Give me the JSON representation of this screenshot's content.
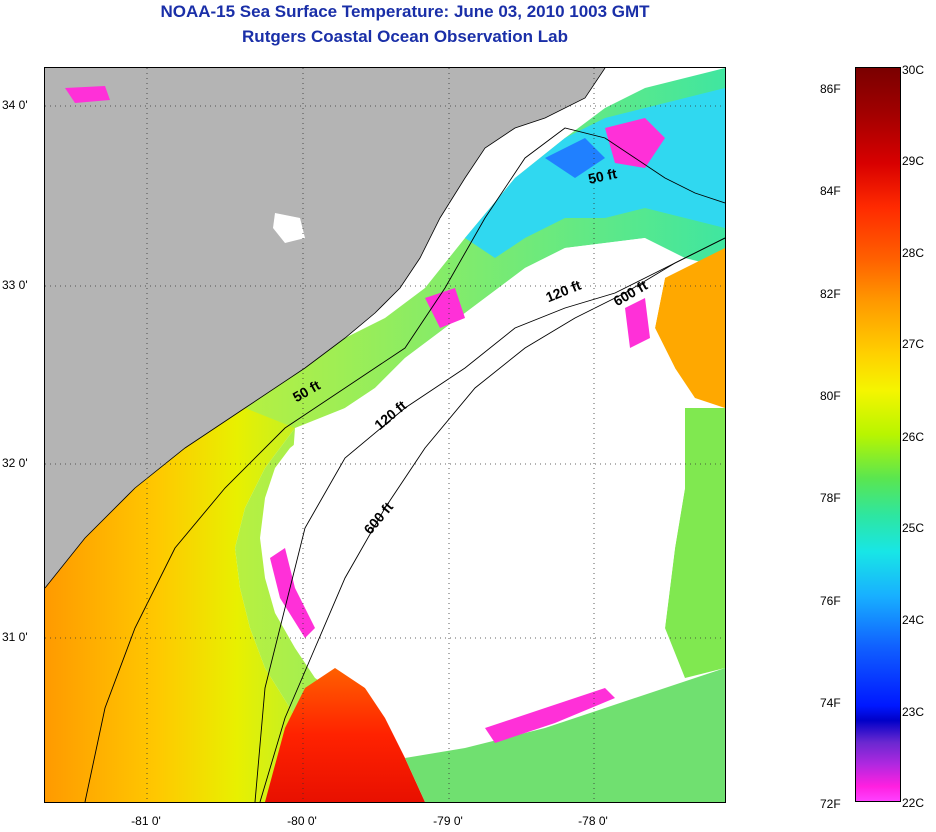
{
  "header": {
    "title": "NOAA-15 Sea Surface Temperature:  June 03, 2010 1003 GMT",
    "subtitle": "Rutgers Coastal Ocean Observation Lab"
  },
  "map": {
    "lat_labels": [
      "34 0'",
      "33 0'",
      "32 0'",
      "31 0'"
    ],
    "lon_labels": [
      "-81 0'",
      "-80 0'",
      "-79 0'",
      "-78 0'"
    ],
    "contour_labels": [
      "50 ft",
      "120 ft",
      "600 ft",
      "50 ft",
      "120 ft",
      "600 ft"
    ],
    "colors": {
      "land": "#b4b4b4",
      "cloud": "#ffffff"
    }
  },
  "colorbar": {
    "fahrenheit": [
      "86F",
      "84F",
      "82F",
      "80F",
      "78F",
      "76F",
      "74F",
      "72F"
    ],
    "celsius": [
      "30C",
      "29C",
      "28C",
      "27C",
      "26C",
      "25C",
      "24C",
      "23C",
      "22C"
    ]
  }
}
